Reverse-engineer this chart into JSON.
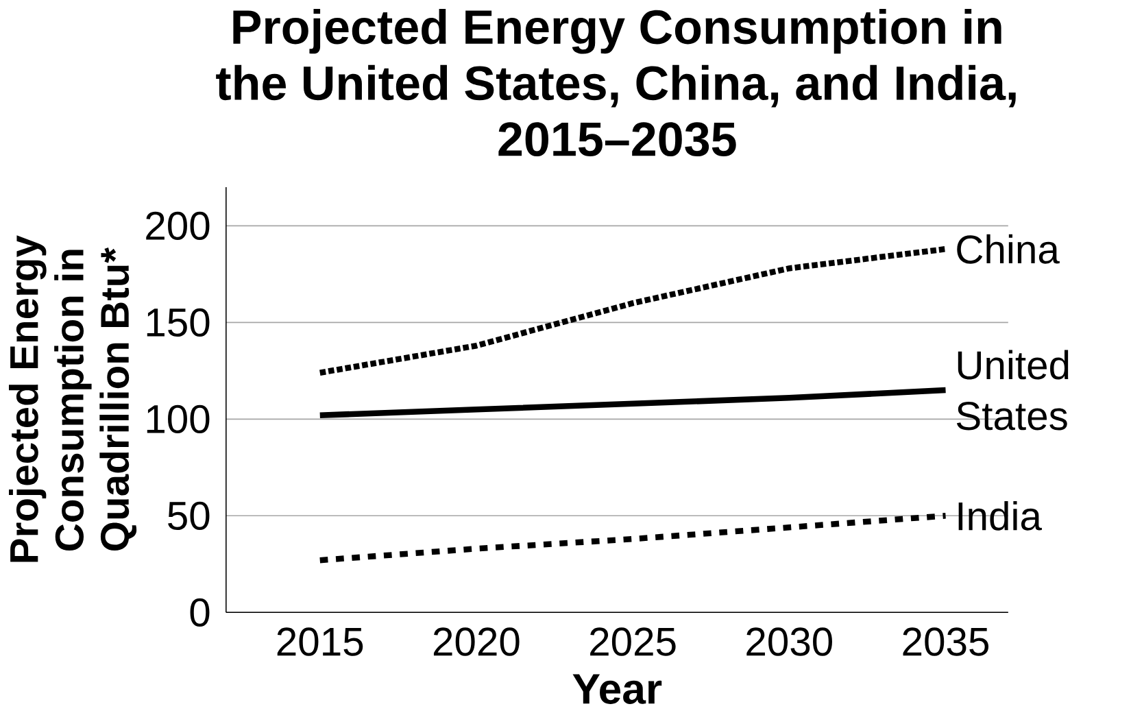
{
  "chart_data": {
    "type": "line",
    "title": "Projected Energy Consumption in the United States, China, and India, 2015–2035",
    "xlabel": "Year",
    "ylabel": "Projected Energy Consumption in Quadrillion Btu*",
    "x": [
      2015,
      2020,
      2025,
      2030,
      2035
    ],
    "series": [
      {
        "name": "China",
        "color": "#000000",
        "line_style": "dotted",
        "values": [
          124,
          138,
          160,
          178,
          188
        ]
      },
      {
        "name": "United States",
        "color": "#000000",
        "line_style": "solid",
        "values": [
          102,
          105,
          108,
          111,
          115
        ]
      },
      {
        "name": "India",
        "color": "#000000",
        "line_style": "dashed",
        "values": [
          27,
          33,
          38,
          44,
          50
        ]
      }
    ],
    "xlim": [
      2012,
      2037
    ],
    "ylim": [
      0,
      220
    ],
    "xticks": [
      2015,
      2020,
      2025,
      2030,
      2035
    ],
    "yticks": [
      0,
      50,
      100,
      150,
      200
    ],
    "grid": "y",
    "marker": "none",
    "legend": false
  }
}
